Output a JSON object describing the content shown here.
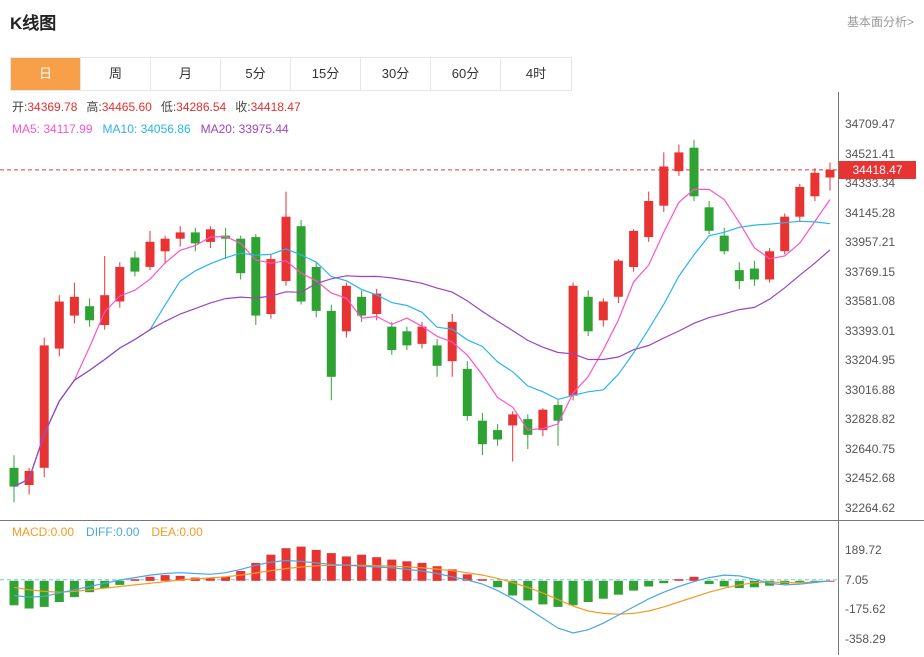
{
  "header": {
    "title": "K线图",
    "link_label": "基本面分析>"
  },
  "tabs": {
    "items": [
      {
        "label": "日",
        "active": true
      },
      {
        "label": "周",
        "active": false
      },
      {
        "label": "月",
        "active": false
      },
      {
        "label": "5分",
        "active": false
      },
      {
        "label": "15分",
        "active": false
      },
      {
        "label": "30分",
        "active": false
      },
      {
        "label": "60分",
        "active": false
      },
      {
        "label": "4时",
        "active": false
      }
    ]
  },
  "readout": {
    "open_label": "开:",
    "open": "34369.78",
    "high_label": "高:",
    "high": "34465.60",
    "low_label": "低:",
    "low": "34286.54",
    "close_label": "收:",
    "close": "34418.47",
    "ma5_label": "MA5:",
    "ma5": "34117.99",
    "ma10_label": "MA10:",
    "ma10": "34056.86",
    "ma20_label": "MA20:",
    "ma20": "33975.44"
  },
  "macd_readout": {
    "macd_label": "MACD:",
    "macd": "0.00",
    "diff_label": "DIFF:",
    "diff": "0.00",
    "dea_label": "DEA:",
    "dea": "0.00"
  },
  "price_badge": "34418.47",
  "colors": {
    "up": "#e83333",
    "down": "#2fa234",
    "ma5": "#ff53c6",
    "ma10": "#29b4f0",
    "ma20": "#9b44c0",
    "diff_line": "#4aa6e8",
    "dea_line": "#f59a23",
    "macd_baseline": "#74c7e3",
    "tab_active_bg": "#f7a049",
    "badge_bg": "#e83333",
    "value_red": "#e62e2e"
  },
  "chart_data": {
    "type": "candlestick+macd",
    "main": {
      "type": "candlestick",
      "ylim": [
        32200,
        34915
      ],
      "axis_labels": [
        34709.47,
        34521.41,
        34333.34,
        34145.28,
        33957.21,
        33769.15,
        33581.08,
        33393.01,
        33204.95,
        33016.88,
        32828.82,
        32640.75,
        32452.68,
        32264.62
      ],
      "current_price": 34418.47,
      "last_ohlc": {
        "open": 34369.78,
        "high": 34465.6,
        "low": 34286.54,
        "close": 34418.47
      },
      "ma": [
        {
          "name": "MA5",
          "period": 5,
          "color": "#ff53c6",
          "last_value": 34117.99
        },
        {
          "name": "MA10",
          "period": 10,
          "color": "#29b4f0",
          "last_value": 34056.86
        },
        {
          "name": "MA20",
          "period": 20,
          "color": "#9b44c0",
          "last_value": 33975.44
        }
      ],
      "candles": [
        [
          32520,
          32600,
          32300,
          32400
        ],
        [
          32410,
          32520,
          32350,
          32500
        ],
        [
          32520,
          33350,
          32460,
          33300
        ],
        [
          33280,
          33620,
          33230,
          33580
        ],
        [
          33490,
          33700,
          33440,
          33610
        ],
        [
          33550,
          33600,
          33420,
          33460
        ],
        [
          33430,
          33870,
          33400,
          33620
        ],
        [
          33580,
          33830,
          33540,
          33800
        ],
        [
          33860,
          33900,
          33740,
          33770
        ],
        [
          33800,
          34030,
          33780,
          33960
        ],
        [
          33900,
          34000,
          33820,
          33980
        ],
        [
          33980,
          34060,
          33930,
          34020
        ],
        [
          34020,
          34050,
          33900,
          33950
        ],
        [
          33960,
          34060,
          33920,
          34040
        ],
        [
          34000,
          34050,
          33850,
          33980
        ],
        [
          33980,
          34000,
          33720,
          33760
        ],
        [
          33990,
          34010,
          33430,
          33490
        ],
        [
          33500,
          33880,
          33470,
          33850
        ],
        [
          33710,
          34280,
          33680,
          34120
        ],
        [
          34060,
          34100,
          33560,
          33580
        ],
        [
          33800,
          33830,
          33480,
          33520
        ],
        [
          33520,
          33560,
          32950,
          33100
        ],
        [
          33390,
          33700,
          33350,
          33680
        ],
        [
          33610,
          33650,
          33450,
          33490
        ],
        [
          33500,
          33660,
          33460,
          33630
        ],
        [
          33420,
          33450,
          33240,
          33270
        ],
        [
          33390,
          33420,
          33270,
          33300
        ],
        [
          33310,
          33450,
          33280,
          33420
        ],
        [
          33300,
          33340,
          33100,
          33170
        ],
        [
          33200,
          33500,
          33100,
          33450
        ],
        [
          33150,
          33200,
          32820,
          32850
        ],
        [
          32820,
          32870,
          32600,
          32670
        ],
        [
          32760,
          32800,
          32660,
          32700
        ],
        [
          32790,
          32880,
          32560,
          32860
        ],
        [
          32830,
          32860,
          32640,
          32730
        ],
        [
          32760,
          32900,
          32720,
          32890
        ],
        [
          32920,
          32950,
          32660,
          32820
        ],
        [
          32980,
          33700,
          32950,
          33680
        ],
        [
          33610,
          33650,
          33360,
          33390
        ],
        [
          33460,
          33600,
          33420,
          33580
        ],
        [
          33610,
          33850,
          33570,
          33840
        ],
        [
          33800,
          34040,
          33770,
          34030
        ],
        [
          33990,
          34280,
          33960,
          34220
        ],
        [
          34190,
          34530,
          34150,
          34440
        ],
        [
          34410,
          34580,
          34380,
          34530
        ],
        [
          34560,
          34610,
          34220,
          34250
        ],
        [
          34180,
          34220,
          34010,
          34030
        ],
        [
          34000,
          34050,
          33880,
          33900
        ],
        [
          33780,
          33830,
          33660,
          33710
        ],
        [
          33790,
          33840,
          33680,
          33720
        ],
        [
          33720,
          33920,
          33700,
          33900
        ],
        [
          33900,
          34140,
          33880,
          34120
        ],
        [
          34120,
          34330,
          34090,
          34310
        ],
        [
          34250,
          34430,
          34220,
          34400
        ],
        [
          34369.78,
          34465.6,
          34286.54,
          34418.47
        ]
      ]
    },
    "macd": {
      "type": "bar+line",
      "ylim": [
        -455,
        367
      ],
      "axis_labels": [
        189.72,
        7.05,
        -175.62,
        -358.29
      ],
      "zero_line": 7.05,
      "histogram": [
        -150,
        -170,
        -160,
        -130,
        -100,
        -70,
        -45,
        -25,
        10,
        25,
        35,
        30,
        20,
        15,
        25,
        60,
        110,
        160,
        200,
        210,
        190,
        170,
        150,
        160,
        145,
        130,
        120,
        110,
        90,
        70,
        40,
        10,
        -40,
        -90,
        -120,
        -145,
        -160,
        -150,
        -130,
        -110,
        -85,
        -60,
        -35,
        -15,
        10,
        25,
        -20,
        -35,
        -45,
        -40,
        -30,
        -20,
        -10,
        -5,
        0
      ],
      "diff": [
        -90,
        -100,
        -95,
        -75,
        -55,
        -35,
        -15,
        5,
        20,
        35,
        45,
        50,
        45,
        40,
        50,
        70,
        95,
        115,
        125,
        120,
        110,
        100,
        95,
        90,
        85,
        80,
        70,
        60,
        45,
        25,
        5,
        -20,
        -60,
        -110,
        -170,
        -230,
        -290,
        -320,
        -300,
        -260,
        -210,
        -160,
        -110,
        -70,
        -35,
        -5,
        20,
        35,
        30,
        10,
        -15,
        -25,
        -20,
        -10,
        0
      ],
      "dea": [
        -40,
        -55,
        -65,
        -70,
        -65,
        -55,
        -45,
        -35,
        -25,
        -15,
        -5,
        5,
        12,
        18,
        25,
        35,
        48,
        62,
        75,
        85,
        92,
        95,
        96,
        95,
        93,
        90,
        86,
        80,
        72,
        62,
        50,
        35,
        15,
        -10,
        -40,
        -75,
        -115,
        -155,
        -185,
        -200,
        -205,
        -200,
        -185,
        -160,
        -130,
        -100,
        -70,
        -45,
        -25,
        -12,
        -8,
        -10,
        -12,
        -8,
        0
      ]
    }
  }
}
